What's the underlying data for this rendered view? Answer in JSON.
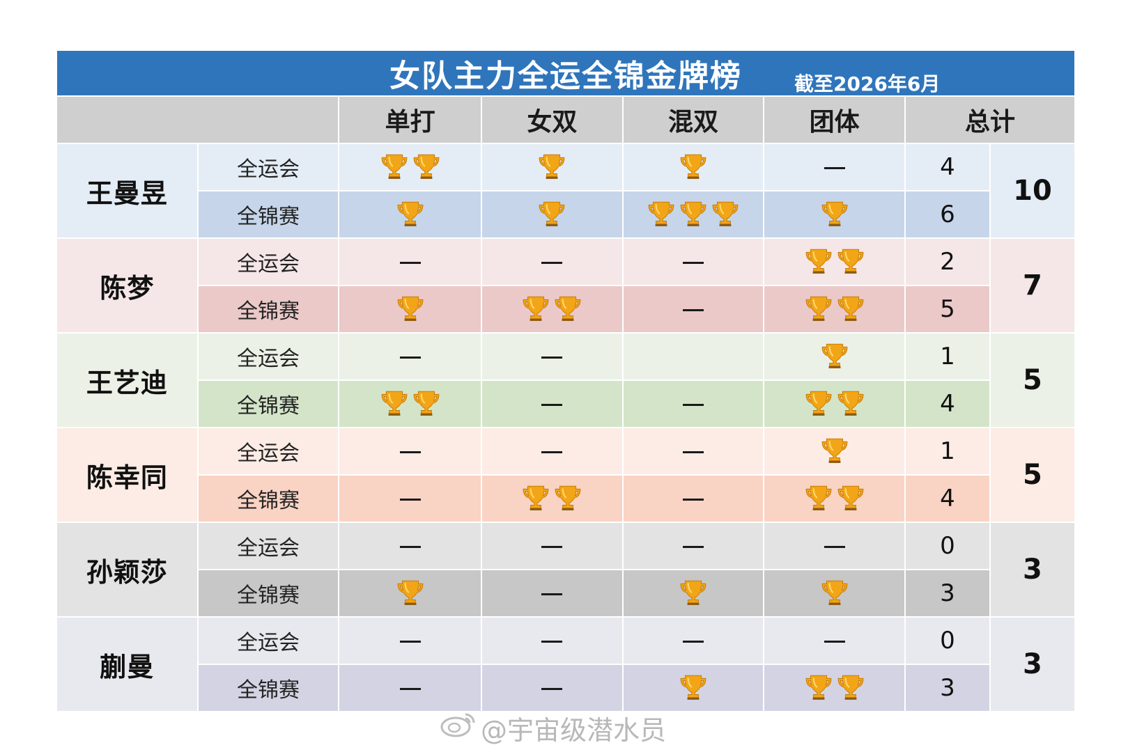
{
  "title": "女队主力全运全锦金牌榜",
  "date_note": "截至2026年6月",
  "headers": [
    "",
    "",
    "单打",
    "女双",
    "混双",
    "团体",
    "总计"
  ],
  "icon_name": "trophy-icon",
  "trophy_color": "#f2a516",
  "players": [
    {
      "name": "王曼昱",
      "total": "10",
      "rows": [
        {
          "event": "全运会",
          "singles": 2,
          "doubles": 1,
          "mixed": 1,
          "team": 0,
          "count": "4"
        },
        {
          "event": "全锦赛",
          "singles": 1,
          "doubles": 1,
          "mixed": 3,
          "team": 1,
          "count": "6"
        }
      ]
    },
    {
      "name": "陈梦",
      "total": "7",
      "rows": [
        {
          "event": "全运会",
          "singles": 0,
          "doubles": 0,
          "mixed": 0,
          "team": 2,
          "count": "2"
        },
        {
          "event": "全锦赛",
          "singles": 1,
          "doubles": 2,
          "mixed": 0,
          "team": 2,
          "count": "5"
        }
      ]
    },
    {
      "name": "王艺迪",
      "total": "5",
      "rows": [
        {
          "event": "全运会",
          "singles": 0,
          "doubles": 0,
          "mixed": null,
          "team": 1,
          "count": "1"
        },
        {
          "event": "全锦赛",
          "singles": 2,
          "doubles": 0,
          "mixed": 0,
          "team": 2,
          "count": "4"
        }
      ]
    },
    {
      "name": "陈幸同",
      "total": "5",
      "rows": [
        {
          "event": "全运会",
          "singles": 0,
          "doubles": 0,
          "mixed": 0,
          "team": 1,
          "count": "1"
        },
        {
          "event": "全锦赛",
          "singles": 0,
          "doubles": 2,
          "mixed": 0,
          "team": 2,
          "count": "4"
        }
      ]
    },
    {
      "name": "孙颖莎",
      "total": "3",
      "rows": [
        {
          "event": "全运会",
          "singles": 0,
          "doubles": 0,
          "mixed": 0,
          "team": 0,
          "count": "0"
        },
        {
          "event": "全锦赛",
          "singles": 1,
          "doubles": 0,
          "mixed": 1,
          "team": 1,
          "count": "3"
        }
      ]
    },
    {
      "name": "蒯曼",
      "total": "3",
      "rows": [
        {
          "event": "全运会",
          "singles": 0,
          "doubles": 0,
          "mixed": 0,
          "team": 0,
          "count": "0"
        },
        {
          "event": "全锦赛",
          "singles": 0,
          "doubles": 0,
          "mixed": 1,
          "team": 2,
          "count": "3"
        }
      ]
    }
  ],
  "watermark": "@宇宙级潜水员"
}
